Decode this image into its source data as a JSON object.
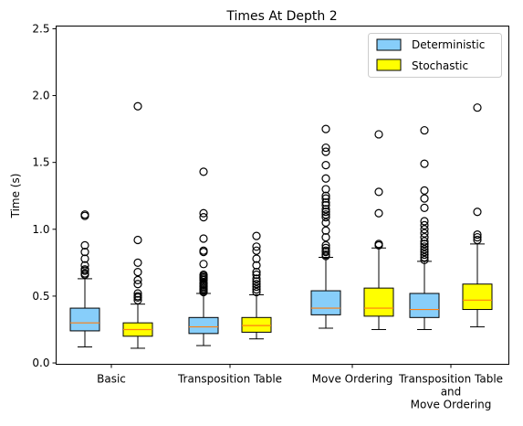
{
  "chart_data": {
    "type": "boxplot",
    "title": "Times At Depth 2",
    "xlabel": "",
    "ylabel": "Time (s)",
    "ylim": [
      -0.01,
      2.52
    ],
    "yticks": [
      0.0,
      0.5,
      1.0,
      1.5,
      2.0,
      2.5
    ],
    "ytick_labels": [
      "0.0",
      "0.5",
      "1.0",
      "1.5",
      "2.0",
      "2.5"
    ],
    "grid": false,
    "legend_position": "top-right",
    "categories": [
      [
        "Basic"
      ],
      [
        "Transposition Table"
      ],
      [
        "Move Ordering"
      ],
      [
        "Transposition Table",
        "and",
        "Move Ordering"
      ]
    ],
    "series": [
      {
        "name": "Deterministic",
        "color": "#87CEFA",
        "boxes": [
          {
            "whisker_low": 0.12,
            "q1": 0.24,
            "median": 0.3,
            "q3": 0.41,
            "whisker_high": 0.63,
            "outliers": [
              0.66,
              0.67,
              0.69,
              0.7,
              0.73,
              0.78,
              0.83,
              0.88,
              1.1,
              1.11
            ]
          },
          {
            "whisker_low": 0.13,
            "q1": 0.22,
            "median": 0.27,
            "q3": 0.34,
            "whisker_high": 0.52,
            "outliers": [
              0.53,
              0.54,
              0.55,
              0.56,
              0.57,
              0.58,
              0.59,
              0.6,
              0.62,
              0.63,
              0.64,
              0.65,
              0.66,
              0.74,
              0.83,
              0.84,
              0.93,
              1.09,
              1.12,
              1.43
            ]
          },
          {
            "whisker_low": 0.26,
            "q1": 0.36,
            "median": 0.41,
            "q3": 0.54,
            "whisker_high": 0.79,
            "outliers": [
              0.8,
              0.81,
              0.83,
              0.84,
              0.86,
              0.88,
              0.94,
              0.99,
              1.05,
              1.09,
              1.11,
              1.13,
              1.15,
              1.18,
              1.2,
              1.23,
              1.25,
              1.3,
              1.38,
              1.48,
              1.58,
              1.61,
              1.75
            ]
          },
          {
            "whisker_low": 0.25,
            "q1": 0.34,
            "median": 0.4,
            "q3": 0.52,
            "whisker_high": 0.76,
            "outliers": [
              0.77,
              0.79,
              0.81,
              0.83,
              0.85,
              0.87,
              0.89,
              0.91,
              0.94,
              0.97,
              1.0,
              1.03,
              1.06,
              1.16,
              1.23,
              1.29,
              1.49,
              1.74
            ]
          }
        ]
      },
      {
        "name": "Stochastic",
        "color": "#FFFF00",
        "boxes": [
          {
            "whisker_low": 0.11,
            "q1": 0.2,
            "median": 0.25,
            "q3": 0.3,
            "whisker_high": 0.44,
            "outliers": [
              0.47,
              0.49,
              0.5,
              0.52,
              0.59,
              0.62,
              0.68,
              0.75,
              0.92,
              1.92
            ]
          },
          {
            "whisker_low": 0.18,
            "q1": 0.23,
            "median": 0.28,
            "q3": 0.34,
            "whisker_high": 0.51,
            "outliers": [
              0.53,
              0.55,
              0.57,
              0.59,
              0.61,
              0.63,
              0.66,
              0.68,
              0.73,
              0.78,
              0.84,
              0.87,
              0.95
            ]
          },
          {
            "whisker_low": 0.25,
            "q1": 0.35,
            "median": 0.41,
            "q3": 0.56,
            "whisker_high": 0.86,
            "outliers": [
              0.88,
              0.89,
              1.12,
              1.28,
              1.71
            ]
          },
          {
            "whisker_low": 0.27,
            "q1": 0.4,
            "median": 0.47,
            "q3": 0.59,
            "whisker_high": 0.89,
            "outliers": [
              0.92,
              0.94,
              0.96,
              1.13,
              1.91
            ]
          }
        ]
      }
    ]
  }
}
